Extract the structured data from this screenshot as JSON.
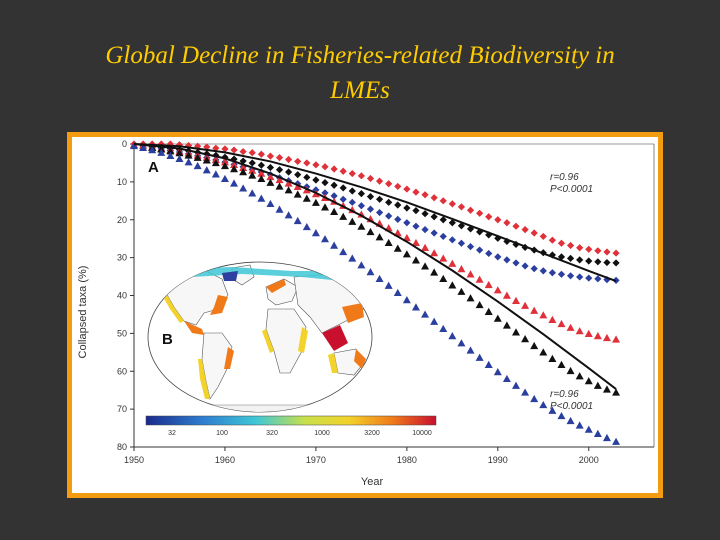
{
  "title": {
    "line1": "Global Decline in Fisheries-related Biodiversity in",
    "line2": "LMEs"
  },
  "colors": {
    "title": "#ffcc00",
    "frame": "#f39c12",
    "background": "#333333",
    "red": "#e0313a",
    "black": "#111111",
    "blue": "#2b3f9e"
  },
  "chart_data": {
    "type": "scatter",
    "xlabel": "Year",
    "ylabel": "Collapsed taxa (%)",
    "xlim": [
      1950,
      2005
    ],
    "ylim": [
      0,
      80
    ],
    "y_inverted": true,
    "xticks": [
      1950,
      1960,
      1970,
      1980,
      1990,
      2000
    ],
    "yticks": [
      0,
      10,
      20,
      30,
      40,
      50,
      60,
      70,
      80
    ],
    "panel_a": "A",
    "panel_b": "B",
    "stat_top": {
      "r": "r=0.96",
      "p": "P<0.0001"
    },
    "stat_bottom": {
      "r": "r=0.96",
      "p": "P<0.0001"
    },
    "colorbar_ticks": [
      "32",
      "100",
      "320",
      "1000",
      "3200",
      "10000"
    ],
    "series": [
      {
        "name": "diamonds-red",
        "marker": "diamond",
        "color": "red",
        "x": [
          1950,
          1951,
          1952,
          1953,
          1954,
          1955,
          1956,
          1957,
          1958,
          1959,
          1960,
          1961,
          1962,
          1963,
          1964,
          1965,
          1966,
          1967,
          1968,
          1969,
          1970,
          1971,
          1972,
          1973,
          1974,
          1975,
          1976,
          1977,
          1978,
          1979,
          1980,
          1981,
          1982,
          1983,
          1984,
          1985,
          1986,
          1987,
          1988,
          1989,
          1990,
          1991,
          1992,
          1993,
          1994,
          1995,
          1996,
          1997,
          1998,
          1999,
          2000,
          2001,
          2002,
          2003
        ],
        "y": [
          0,
          0,
          0,
          0,
          0,
          0.2,
          0.4,
          0.6,
          0.8,
          1.1,
          1.3,
          1.6,
          2,
          2.3,
          2.7,
          3.2,
          3.6,
          4.1,
          4.6,
          5,
          5.5,
          6,
          6.6,
          7.2,
          7.8,
          8.4,
          9.1,
          9.8,
          10.5,
          11.2,
          11.9,
          12.7,
          13.4,
          14.2,
          15,
          15.8,
          16.6,
          17.5,
          18.3,
          19.2,
          20,
          20.8,
          21.7,
          22.6,
          23.5,
          24.4,
          25.4,
          26.2,
          26.8,
          27.4,
          27.8,
          28.2,
          28.5,
          28.8
        ]
      },
      {
        "name": "diamonds-black",
        "marker": "diamond",
        "color": "black",
        "x": [
          1951,
          1952,
          1953,
          1954,
          1955,
          1956,
          1957,
          1958,
          1959,
          1960,
          1961,
          1962,
          1963,
          1964,
          1965,
          1966,
          1967,
          1968,
          1969,
          1970,
          1971,
          1972,
          1973,
          1974,
          1975,
          1976,
          1977,
          1978,
          1979,
          1980,
          1981,
          1982,
          1983,
          1984,
          1985,
          1986,
          1987,
          1988,
          1989,
          1990,
          1991,
          1992,
          1993,
          1994,
          1995,
          1996,
          1997,
          1998,
          1999,
          2000,
          2001,
          2002,
          2003
        ],
        "y": [
          0.5,
          0.7,
          0.9,
          1.2,
          1.5,
          1.8,
          2.2,
          2.6,
          3,
          3.5,
          4,
          4.5,
          5,
          5.6,
          6.2,
          6.8,
          7.4,
          8.1,
          8.8,
          9.5,
          10.2,
          10.9,
          11.6,
          12.4,
          13.1,
          13.9,
          14.6,
          15.4,
          16.1,
          16.9,
          17.6,
          18.4,
          19.2,
          20,
          20.8,
          21.6,
          22.4,
          23.2,
          24,
          24.9,
          25.7,
          26.5,
          27.3,
          28,
          28.7,
          29.3,
          29.8,
          30.2,
          30.6,
          30.9,
          31.1,
          31.3,
          31.4
        ]
      },
      {
        "name": "diamonds-blue",
        "marker": "diamond",
        "color": "blue",
        "x": [
          1952,
          1953,
          1954,
          1955,
          1956,
          1957,
          1958,
          1959,
          1960,
          1961,
          1962,
          1963,
          1964,
          1965,
          1966,
          1967,
          1968,
          1969,
          1970,
          1971,
          1972,
          1973,
          1974,
          1975,
          1976,
          1977,
          1978,
          1979,
          1980,
          1981,
          1982,
          1983,
          1984,
          1985,
          1986,
          1987,
          1988,
          1989,
          1990,
          1991,
          1992,
          1993,
          1994,
          1995,
          1996,
          1997,
          1998,
          1999,
          2000,
          2001,
          2002,
          2003
        ],
        "y": [
          1,
          1.3,
          1.7,
          2.1,
          2.6,
          3.1,
          3.6,
          4.2,
          4.8,
          5.4,
          6,
          6.7,
          7.4,
          8.1,
          8.9,
          9.7,
          10.5,
          11.3,
          12.1,
          12.9,
          13.7,
          14.6,
          15.4,
          16.3,
          17.2,
          18.1,
          19,
          19.9,
          20.8,
          21.7,
          22.6,
          23.5,
          24.4,
          25.3,
          26.2,
          27.1,
          28,
          28.9,
          29.8,
          30.6,
          31.4,
          32.2,
          32.9,
          33.5,
          34,
          34.4,
          34.8,
          35.1,
          35.4,
          35.6,
          35.8,
          36
        ]
      },
      {
        "name": "triangles-red",
        "marker": "triangle",
        "color": "red",
        "x": [
          1950,
          1951,
          1952,
          1953,
          1954,
          1955,
          1956,
          1957,
          1958,
          1959,
          1960,
          1961,
          1962,
          1963,
          1964,
          1965,
          1966,
          1967,
          1968,
          1969,
          1970,
          1971,
          1972,
          1973,
          1974,
          1975,
          1976,
          1977,
          1978,
          1979,
          1980,
          1981,
          1982,
          1983,
          1984,
          1985,
          1986,
          1987,
          1988,
          1989,
          1990,
          1991,
          1992,
          1993,
          1994,
          1995,
          1996,
          1997,
          1998,
          1999,
          2000,
          2001,
          2002,
          2003
        ],
        "y": [
          0.2,
          0.4,
          0.8,
          1.2,
          1.6,
          2,
          2.5,
          3,
          3.6,
          4.2,
          4.8,
          5.5,
          6.3,
          7,
          7.8,
          8.7,
          9.5,
          10.4,
          11.3,
          12.2,
          13.2,
          14.2,
          15.2,
          16.3,
          17.4,
          18.6,
          19.8,
          21,
          22.2,
          23.5,
          24.8,
          26.1,
          27.4,
          28.8,
          30.2,
          31.6,
          33,
          34.4,
          35.8,
          37.2,
          38.6,
          40,
          41.4,
          42.7,
          44,
          45.2,
          46.4,
          47.5,
          48.5,
          49.4,
          50.1,
          50.7,
          51.2,
          51.6
        ]
      },
      {
        "name": "triangles-black",
        "marker": "triangle",
        "color": "black",
        "x": [
          1952,
          1953,
          1954,
          1955,
          1956,
          1957,
          1958,
          1959,
          1960,
          1961,
          1962,
          1963,
          1964,
          1965,
          1966,
          1967,
          1968,
          1969,
          1970,
          1971,
          1972,
          1973,
          1974,
          1975,
          1976,
          1977,
          1978,
          1979,
          1980,
          1981,
          1982,
          1983,
          1984,
          1985,
          1986,
          1987,
          1988,
          1989,
          1990,
          1991,
          1992,
          1993,
          1994,
          1995,
          1996,
          1997,
          1998,
          1999,
          2000,
          2001,
          2002,
          2003
        ],
        "y": [
          1,
          1.4,
          1.9,
          2.4,
          3,
          3.6,
          4.3,
          5,
          5.8,
          6.6,
          7.4,
          8.3,
          9.2,
          10.2,
          11.2,
          12.2,
          13.3,
          14.4,
          15.5,
          16.7,
          17.9,
          19.2,
          20.5,
          21.8,
          23.2,
          24.6,
          26.1,
          27.6,
          29.1,
          30.7,
          32.3,
          33.9,
          35.6,
          37.3,
          39,
          40.7,
          42.5,
          44.3,
          46.1,
          47.9,
          49.7,
          51.5,
          53.3,
          55,
          56.7,
          58.3,
          59.9,
          61.3,
          62.6,
          63.8,
          64.8,
          65.6
        ]
      },
      {
        "name": "triangles-blue",
        "marker": "triangle",
        "color": "blue",
        "x": [
          1950,
          1951,
          1952,
          1953,
          1954,
          1955,
          1956,
          1957,
          1958,
          1959,
          1960,
          1961,
          1962,
          1963,
          1964,
          1965,
          1966,
          1967,
          1968,
          1969,
          1970,
          1971,
          1972,
          1973,
          1974,
          1975,
          1976,
          1977,
          1978,
          1979,
          1980,
          1981,
          1982,
          1983,
          1984,
          1985,
          1986,
          1987,
          1988,
          1989,
          1990,
          1991,
          1992,
          1993,
          1994,
          1995,
          1996,
          1997,
          1998,
          1999,
          2000,
          2001,
          2002,
          2003
        ],
        "y": [
          0.5,
          1,
          1.6,
          2.3,
          3.1,
          3.9,
          4.8,
          5.8,
          6.9,
          8,
          9.2,
          10.4,
          11.7,
          13,
          14.4,
          15.8,
          17.3,
          18.8,
          20.3,
          21.9,
          23.5,
          25.1,
          26.8,
          28.5,
          30.2,
          32,
          33.8,
          35.6,
          37.4,
          39.3,
          41.2,
          43.1,
          45,
          46.9,
          48.8,
          50.7,
          52.6,
          54.5,
          56.4,
          58.3,
          60.2,
          62,
          63.8,
          65.6,
          67.3,
          68.9,
          70.4,
          71.8,
          73.1,
          74.3,
          75.4,
          76.5,
          77.6,
          78.6
        ]
      },
      {
        "name": "trend-top",
        "marker": "line",
        "color": "black",
        "x": [
          1950,
          1955,
          1960,
          1965,
          1970,
          1975,
          1980,
          1985,
          1990,
          1995,
          2000,
          2003
        ],
        "y": [
          0,
          0.6,
          2.2,
          4.6,
          7.8,
          11.4,
          15.4,
          19.8,
          24.3,
          28.9,
          33.5,
          36.2
        ]
      },
      {
        "name": "trend-bottom",
        "marker": "line",
        "color": "black",
        "x": [
          1950,
          1955,
          1960,
          1965,
          1970,
          1975,
          1980,
          1985,
          1990,
          1995,
          2000,
          2003
        ],
        "y": [
          0,
          1.2,
          3.8,
          7.8,
          12.9,
          18.9,
          25.8,
          33.4,
          41.6,
          50.2,
          59.2,
          64.7
        ]
      }
    ]
  }
}
